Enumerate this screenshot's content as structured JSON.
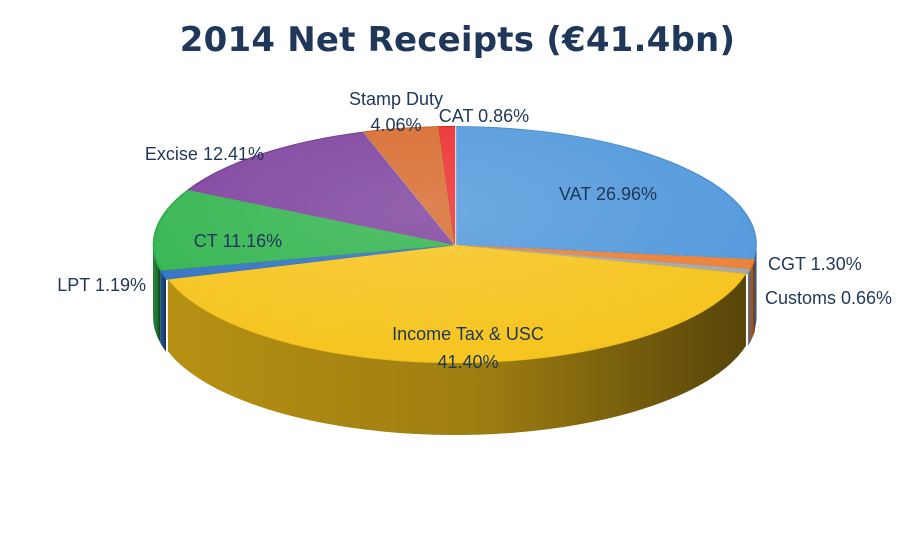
{
  "chart_data": {
    "type": "pie",
    "title": "2014 Net Receipts (€41.4bn)",
    "style": "3d-exploded",
    "slices": [
      {
        "name": "VAT",
        "value": 26.96,
        "label": "VAT 26.96%",
        "color": "#4f97db"
      },
      {
        "name": "CGT",
        "value": 1.3,
        "label": "CGT 1.30%",
        "color": "#ed7d31"
      },
      {
        "name": "Customs",
        "value": 0.66,
        "label": "Customs 0.66%",
        "color": "#a5a5a5"
      },
      {
        "name": "Income Tax & USC",
        "value": 41.4,
        "label_lines": [
          "Income Tax & USC",
          "41.40%"
        ],
        "color": "#f6c31a"
      },
      {
        "name": "LPT",
        "value": 1.19,
        "label": "LPT 1.19%",
        "color": "#2e70c1"
      },
      {
        "name": "CT",
        "value": 11.16,
        "label": "CT 11.16%",
        "color": "#2fb34c"
      },
      {
        "name": "Excise",
        "value": 12.41,
        "label": "Excise 12.41%",
        "color": "#7c3f9c"
      },
      {
        "name": "Stamp Duty",
        "value": 4.06,
        "label_lines": [
          "Stamp Duty",
          "4.06%"
        ],
        "color": "#d7682a"
      },
      {
        "name": "CAT",
        "value": 0.86,
        "label": "CAT 0.86%",
        "color": "#ec2a2e"
      }
    ]
  }
}
